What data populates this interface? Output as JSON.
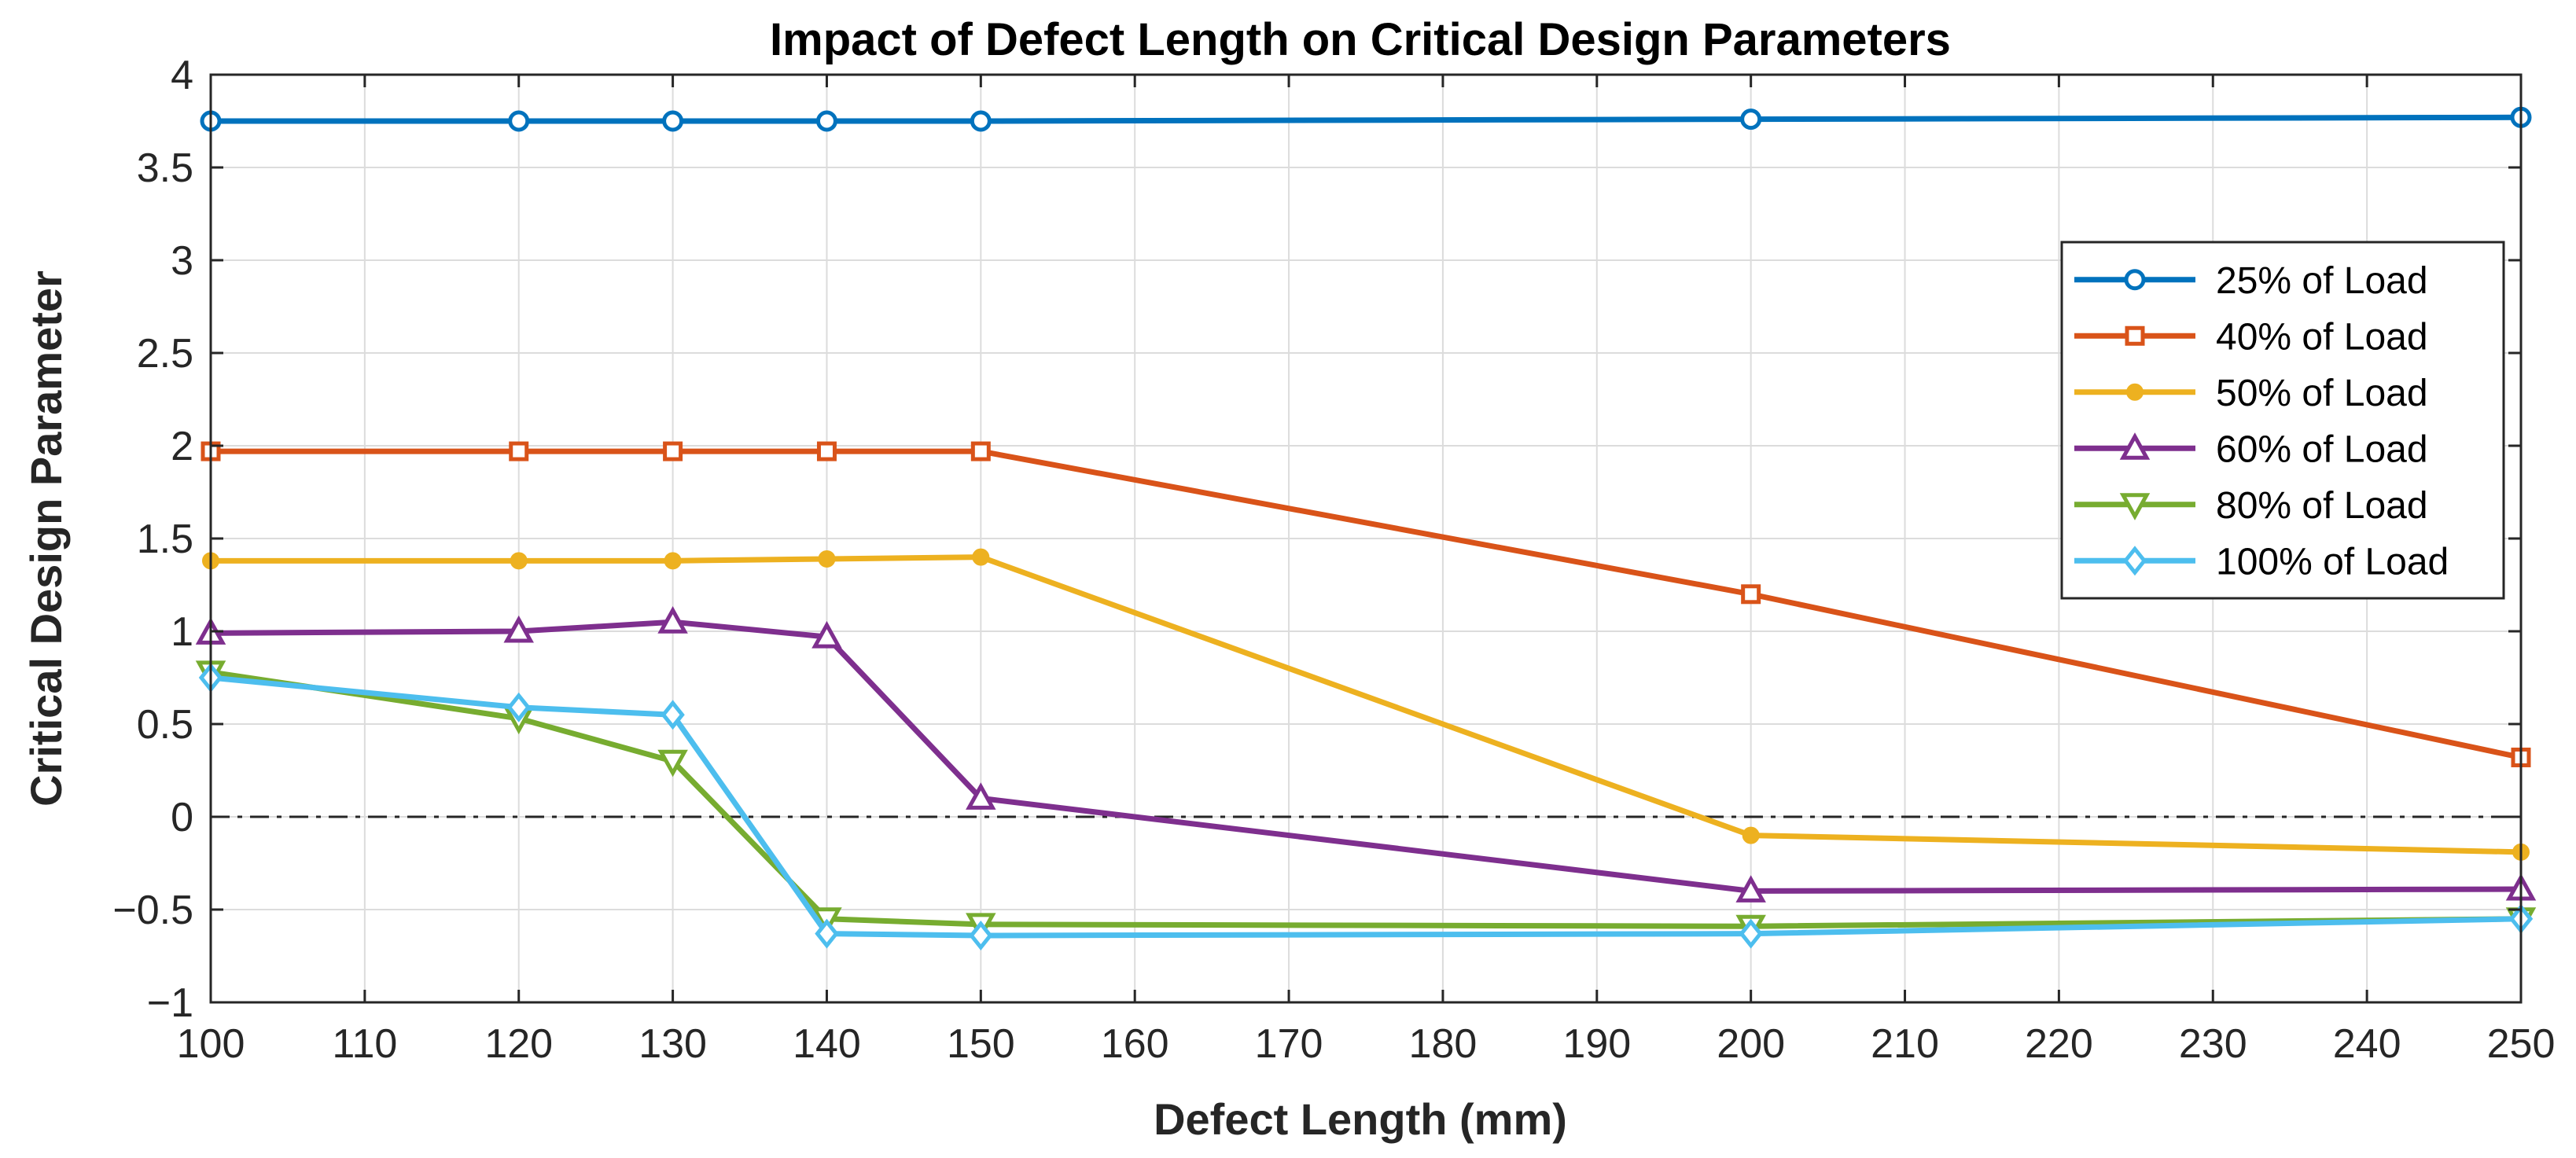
{
  "chart_data": {
    "type": "line",
    "title": "Impact of Defect Length on Critical Design Parameters",
    "xlabel": "Defect Length (mm)",
    "ylabel": "Critical Design Parameter",
    "xlim": [
      100,
      250
    ],
    "ylim": [
      -1,
      4
    ],
    "xticks": [
      100,
      110,
      120,
      130,
      140,
      150,
      160,
      170,
      180,
      190,
      200,
      210,
      220,
      230,
      240,
      250
    ],
    "yticks": [
      -1,
      -0.5,
      0,
      0.5,
      1,
      1.5,
      2,
      2.5,
      3,
      3.5,
      4
    ],
    "ytick_labels": [
      "−1",
      "−0.5",
      "0",
      "0.5",
      "1",
      "1.5",
      "2",
      "2.5",
      "3",
      "3.5",
      "4"
    ],
    "grid": true,
    "legend_position": "right",
    "reference_line": {
      "y": 0,
      "style": "dash-dot"
    },
    "x": [
      100,
      120,
      130,
      140,
      150,
      200,
      250
    ],
    "series": [
      {
        "name": "25% of Load",
        "color": "#0072BD",
        "marker": "circle",
        "values": [
          3.75,
          3.75,
          3.75,
          3.75,
          3.75,
          3.76,
          3.77
        ]
      },
      {
        "name": "40% of Load",
        "color": "#D95319",
        "marker": "square",
        "values": [
          1.97,
          1.97,
          1.97,
          1.97,
          1.97,
          1.2,
          0.32
        ]
      },
      {
        "name": "50% of Load",
        "color": "#EDB120",
        "marker": "filled-circle",
        "values": [
          1.38,
          1.38,
          1.38,
          1.39,
          1.4,
          -0.1,
          -0.19
        ]
      },
      {
        "name": "60% of Load",
        "color": "#7E2F8E",
        "marker": "triangle-up",
        "values": [
          0.99,
          1.0,
          1.05,
          0.97,
          0.1,
          -0.4,
          -0.39
        ]
      },
      {
        "name": "80% of Load",
        "color": "#77AC30",
        "marker": "triangle-down",
        "values": [
          0.78,
          0.53,
          0.3,
          -0.55,
          -0.58,
          -0.59,
          -0.55
        ]
      },
      {
        "name": "100% of Load",
        "color": "#4DBEEE",
        "marker": "diamond",
        "values": [
          0.75,
          0.59,
          0.55,
          -0.63,
          -0.64,
          -0.63,
          -0.55
        ]
      }
    ]
  }
}
